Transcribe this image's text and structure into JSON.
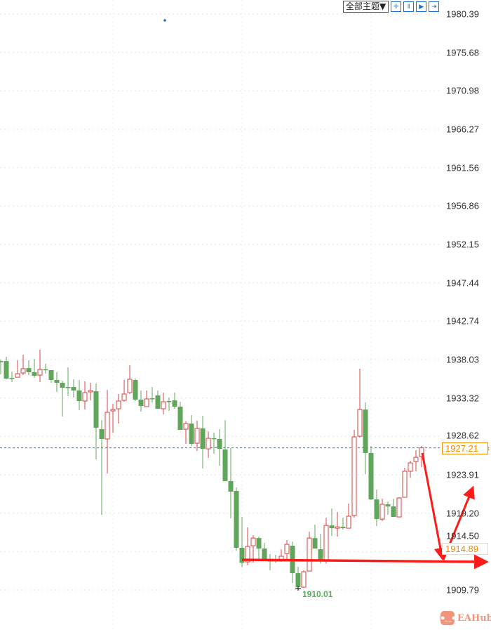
{
  "toolbar": {
    "theme_label": "全部主题▼",
    "icons": [
      "crosshair-icon",
      "zoom-range-icon",
      "play-forward-icon",
      "exit-icon"
    ]
  },
  "current_price": "1927.21",
  "level_price": "1914.89",
  "low_annotation": "1910.01",
  "logo_text": "EAHub",
  "colors": {
    "up": "#d94040",
    "down": "#5fa55a",
    "current_line": "#2a7fd4",
    "arrow": "#ff1a1a",
    "price_box": "#f08c00"
  },
  "chart_data": {
    "type": "candlestick",
    "y_ticks": [
      "1980.39",
      "1975.68",
      "1970.98",
      "1966.27",
      "1961.56",
      "1956.86",
      "1952.15",
      "1947.44",
      "1942.74",
      "1938.03",
      "1933.32",
      "1928.62",
      "1923.91",
      "1919.20",
      "1914.50",
      "1909.79"
    ],
    "ylim": [
      1909.79,
      1980.39
    ],
    "grid": true,
    "candles": [
      [
        1937.85,
        1938.03,
        1936.22,
        1937.85
      ],
      [
        1937.85,
        1938.37,
        1935.62,
        1935.7
      ],
      [
        1935.79,
        1936.56,
        1935.27,
        1935.79
      ],
      [
        1935.87,
        1937.94,
        1935.87,
        1936.3
      ],
      [
        1936.39,
        1938.63,
        1936.13,
        1936.91
      ],
      [
        1936.99,
        1937.94,
        1936.13,
        1936.48
      ],
      [
        1936.48,
        1938.11,
        1935.79,
        1936.05
      ],
      [
        1936.13,
        1939.23,
        1935.27,
        1936.82
      ],
      [
        1936.85,
        1937.51,
        1936.3,
        1936.82
      ],
      [
        1936.74,
        1936.74,
        1935.19,
        1935.53
      ],
      [
        1935.53,
        1936.48,
        1934.07,
        1935.19
      ],
      [
        1935.19,
        1935.44,
        1931.05,
        1934.58
      ],
      [
        1934.67,
        1937.08,
        1933.55,
        1934.67
      ],
      [
        1934.67,
        1935.62,
        1933.38,
        1934.24
      ],
      [
        1934.24,
        1935.53,
        1931.83,
        1932.95
      ],
      [
        1932.95,
        1935.36,
        1931.91,
        1933.98
      ],
      [
        1934.07,
        1935.19,
        1933.03,
        1934.24
      ],
      [
        1934.15,
        1935.1,
        1925.8,
        1929.68
      ],
      [
        1929.5,
        1930.62,
        1919.0,
        1928.3
      ],
      [
        1928.3,
        1934.32,
        1924.06,
        1931.57
      ],
      [
        1931.74,
        1932.6,
        1929.07,
        1931.91
      ],
      [
        1932.0,
        1933.81,
        1930.19,
        1932.95
      ],
      [
        1933.03,
        1935.53,
        1932.86,
        1933.81
      ],
      [
        1933.98,
        1937.34,
        1933.81,
        1935.62
      ],
      [
        1935.53,
        1935.7,
        1932.95,
        1933.12
      ],
      [
        1933.12,
        1934.24,
        1931.66,
        1932.34
      ],
      [
        1932.26,
        1934.24,
        1932.26,
        1933.21
      ],
      [
        1933.29,
        1934.67,
        1932.77,
        1933.29
      ],
      [
        1933.64,
        1934.24,
        1932.0,
        1932.0
      ],
      [
        1932.0,
        1933.98,
        1931.31,
        1932.86
      ],
      [
        1932.95,
        1933.38,
        1931.74,
        1932.95
      ],
      [
        1933.03,
        1933.98,
        1932.0,
        1932.26
      ],
      [
        1932.26,
        1932.86,
        1929.42,
        1929.42
      ],
      [
        1929.5,
        1930.45,
        1927.69,
        1930.19
      ],
      [
        1930.19,
        1931.22,
        1927.44,
        1927.69
      ],
      [
        1927.78,
        1930.54,
        1926.83,
        1929.59
      ],
      [
        1929.59,
        1931.14,
        1924.68,
        1927.09
      ],
      [
        1927.09,
        1929.24,
        1925.97,
        1928.38
      ],
      [
        1928.4,
        1929.07,
        1926.49,
        1928.38
      ],
      [
        1928.3,
        1929.5,
        1925.03,
        1927.09
      ],
      [
        1927.01,
        1930.62,
        1923.13,
        1923.13
      ],
      [
        1923.13,
        1927.18,
        1918.57,
        1921.84
      ],
      [
        1921.93,
        1922.36,
        1914.61,
        1914.95
      ],
      [
        1914.95,
        1918.74,
        1912.58,
        1913.12
      ],
      [
        1913.23,
        1917.45,
        1912.84,
        1915.12
      ],
      [
        1915.21,
        1916.5,
        1913.12,
        1916.15
      ],
      [
        1916.15,
        1916.33,
        1913.57,
        1914.87
      ],
      [
        1914.87,
        1915.55,
        1913.4,
        1913.4
      ],
      [
        1913.42,
        1914.18,
        1912.2,
        1913.4
      ],
      [
        1913.42,
        1914.1,
        1913.12,
        1913.4
      ],
      [
        1913.4,
        1914.78,
        1913.23,
        1913.92
      ],
      [
        1914.26,
        1915.9,
        1913.4,
        1915.38
      ],
      [
        1915.21,
        1915.72,
        1910.65,
        1911.85
      ],
      [
        1911.85,
        1912.63,
        1910.01,
        1910.13
      ],
      [
        1910.13,
        1912.2,
        1910.05,
        1912.02
      ],
      [
        1912.11,
        1916.93,
        1912.11,
        1916.15
      ],
      [
        1916.15,
        1917.79,
        1914.87,
        1914.87
      ],
      [
        1914.78,
        1916.67,
        1913.03,
        1913.4
      ],
      [
        1913.4,
        1918.65,
        1913.03,
        1917.7
      ],
      [
        1917.7,
        1919.77,
        1916.41,
        1917.36
      ],
      [
        1917.36,
        1919.34,
        1916.33,
        1917.53
      ],
      [
        1917.53,
        1918.65,
        1917.19,
        1917.36
      ],
      [
        1917.36,
        1920.38,
        1917.36,
        1918.83
      ],
      [
        1918.91,
        1929.42,
        1918.65,
        1928.56
      ],
      [
        1928.64,
        1936.91,
        1928.47,
        1931.91
      ],
      [
        1931.91,
        1932.77,
        1923.97,
        1926.58
      ],
      [
        1926.58,
        1927.44,
        1920.81,
        1920.89
      ],
      [
        1920.89,
        1922.1,
        1917.62,
        1918.48
      ],
      [
        1918.48,
        1920.98,
        1918.22,
        1920.29
      ],
      [
        1920.29,
        1920.63,
        1919.0,
        1920.03
      ],
      [
        1920.03,
        1920.98,
        1918.74,
        1918.74
      ],
      [
        1918.74,
        1921.15,
        1918.74,
        1921.07
      ],
      [
        1921.15,
        1924.77,
        1921.15,
        1924.34
      ],
      [
        1924.34,
        1925.63,
        1923.56,
        1925.37
      ],
      [
        1925.54,
        1926.92,
        1924.34,
        1926.05
      ],
      [
        1926.14,
        1927.44,
        1924.85,
        1927.21
      ]
    ],
    "candle_fields": [
      "open",
      "high",
      "low",
      "close"
    ],
    "annotations": {
      "current_price": 1927.21,
      "horizontal_level": 1914.89,
      "low_marker": 1910.01
    }
  }
}
